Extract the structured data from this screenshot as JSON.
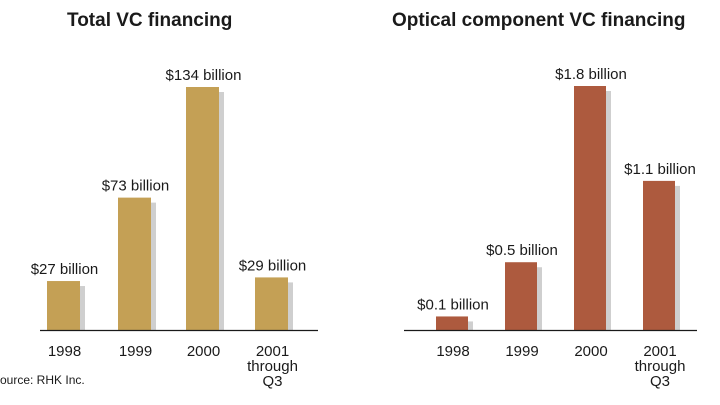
{
  "chart_data": [
    {
      "type": "bar",
      "title": "Total VC financing",
      "categories": [
        "1998",
        "1999",
        "2000",
        "2001\nthrough\nQ3"
      ],
      "values": [
        27,
        73,
        134,
        29
      ],
      "data_labels": [
        "$27 billion",
        "$73 billion",
        "$134 billion",
        "$29 billion"
      ],
      "unit": "billion USD",
      "ylim": [
        0,
        134
      ],
      "grid": false,
      "legend": "none",
      "color": "#c4a055",
      "shadow_color": "#cfcfcf"
    },
    {
      "type": "bar",
      "title": "Optical component VC financing",
      "categories": [
        "1998",
        "1999",
        "2000",
        "2001\nthrough\nQ3"
      ],
      "values": [
        0.1,
        0.5,
        1.8,
        1.1
      ],
      "data_labels": [
        "$0.1 billion",
        "$0.5 billion",
        "$1.8 billion",
        "$1.1 billion"
      ],
      "unit": "billion USD",
      "ylim": [
        0,
        1.8
      ],
      "grid": false,
      "legend": "none",
      "color": "#ad5a3e",
      "shadow_color": "#cfcfcf"
    }
  ],
  "source": "ource: RHK Inc.",
  "colors": {
    "axis": "#1a1a1a"
  }
}
